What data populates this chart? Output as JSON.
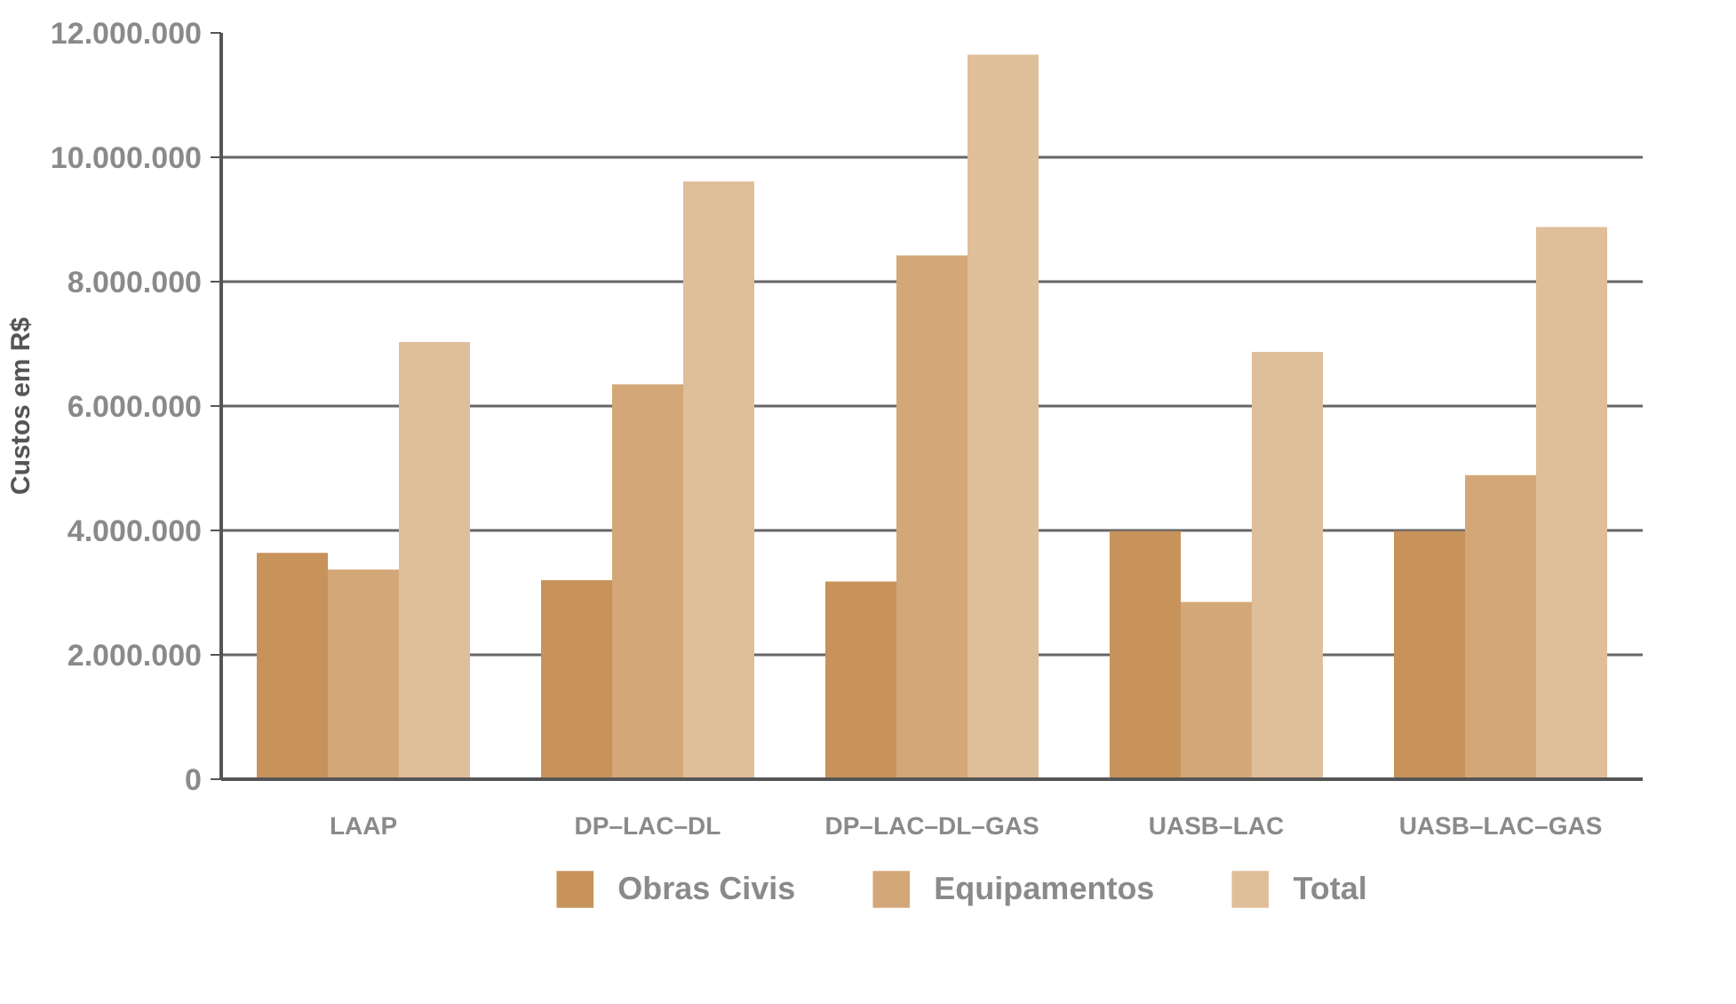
{
  "chart_data": {
    "type": "bar",
    "ylabel": "Custos em R$",
    "categories": [
      "LAAP",
      "DP–LAC–DL",
      "DP–LAC–DL–GAS",
      "UASB–LAC",
      "UASB–LAC–GAS"
    ],
    "series": [
      {
        "name": "Obras Civis",
        "color": "#c8925b",
        "values": [
          3640000,
          3200000,
          3180000,
          3990000,
          3990000
        ]
      },
      {
        "name": "Equipamentos",
        "color": "#d4a778",
        "values": [
          3370000,
          6350000,
          8420000,
          2850000,
          4890000
        ]
      },
      {
        "name": "Total",
        "color": "#dfbe9a",
        "values": [
          7030000,
          9610000,
          11650000,
          6870000,
          8880000
        ]
      }
    ],
    "ylim": [
      0,
      12000000
    ],
    "yticks": [
      {
        "value": 0,
        "label": "0"
      },
      {
        "value": 2000000,
        "label": "2.000.000"
      },
      {
        "value": 4000000,
        "label": "4.000.000"
      },
      {
        "value": 6000000,
        "label": "6.000.000"
      },
      {
        "value": 8000000,
        "label": "8.000.000"
      },
      {
        "value": 10000000,
        "label": "10.000.000"
      },
      {
        "value": 12000000,
        "label": "12.000.000"
      }
    ],
    "grid": "y",
    "legend": "bottom"
  }
}
